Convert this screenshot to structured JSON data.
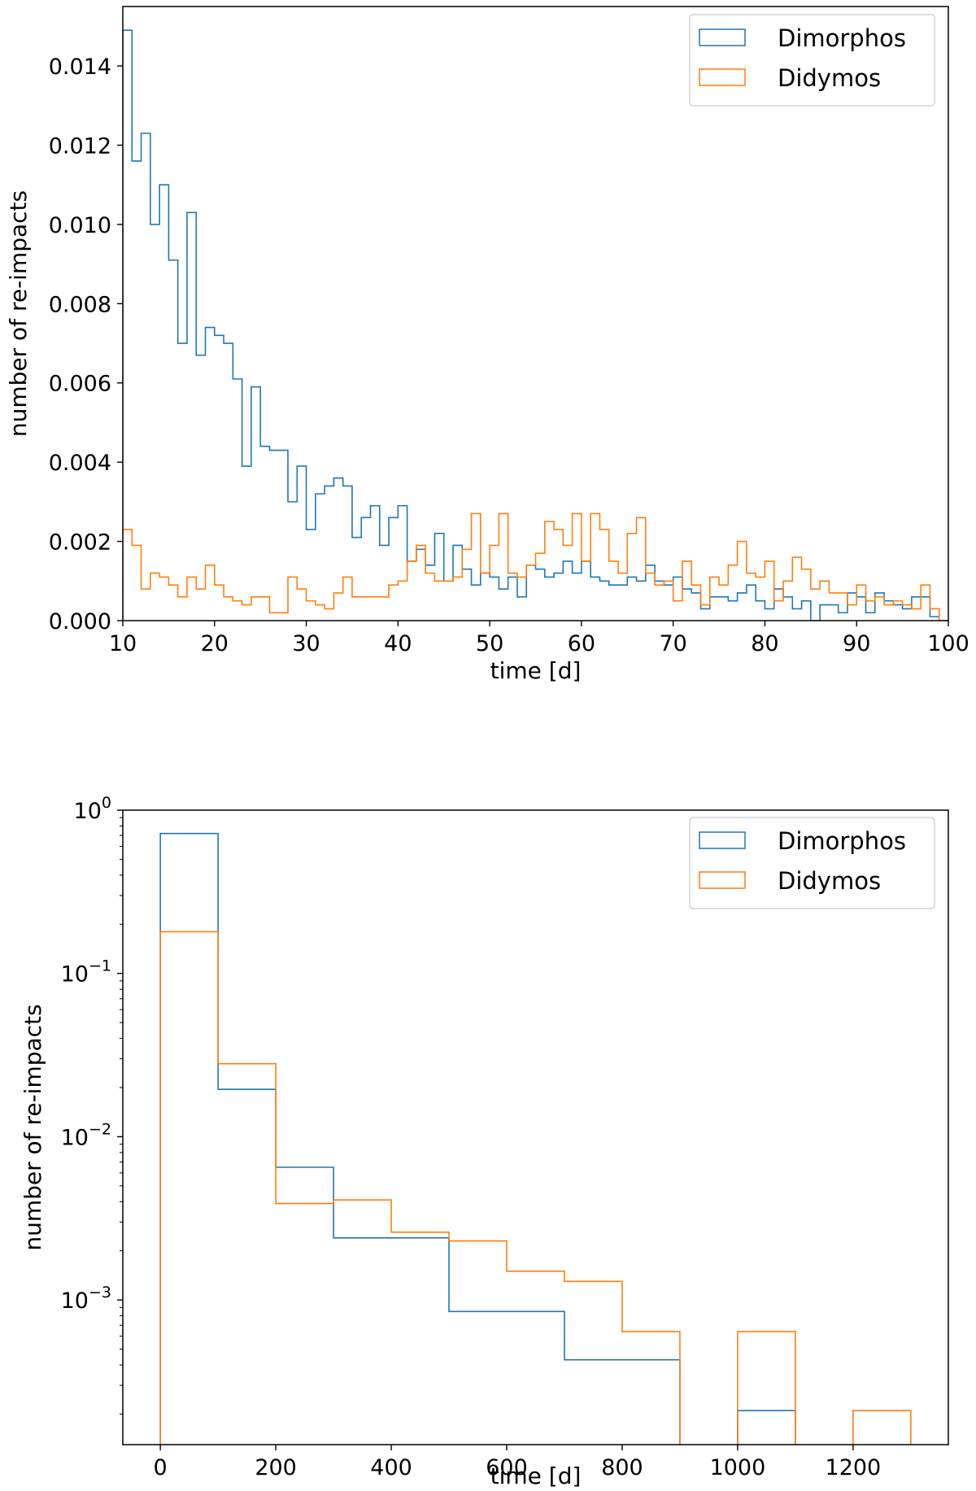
{
  "chart_data": [
    {
      "type": "step-histogram",
      "title": "",
      "xlabel": "time [d]",
      "ylabel": "number of re-impacts",
      "xlim": [
        10,
        100
      ],
      "ylim": [
        0,
        0.0155
      ],
      "yscale": "linear",
      "xticks": [
        10,
        20,
        30,
        40,
        50,
        60,
        70,
        80,
        90,
        100
      ],
      "xtick_labels": [
        "10",
        "20",
        "30",
        "40",
        "50",
        "60",
        "70",
        "80",
        "90",
        "100"
      ],
      "yticks": [
        0,
        0.002,
        0.004,
        0.006,
        0.008,
        0.01,
        0.012,
        0.014
      ],
      "ytick_labels": [
        "0.000",
        "0.002",
        "0.004",
        "0.006",
        "0.008",
        "0.010",
        "0.012",
        "0.014"
      ],
      "legend": {
        "position": "top-right",
        "entries": [
          "Dimorphos",
          "Didymos"
        ]
      },
      "bin_start": 10,
      "bin_width": 1,
      "series": [
        {
          "name": "Dimorphos",
          "color": "#1f77b4",
          "values": [
            0.0149,
            0.0116,
            0.0123,
            0.01,
            0.011,
            0.0091,
            0.007,
            0.0103,
            0.0067,
            0.0074,
            0.0072,
            0.007,
            0.0061,
            0.0039,
            0.0059,
            0.0044,
            0.0043,
            0.0043,
            0.003,
            0.0039,
            0.0023,
            0.0032,
            0.0034,
            0.0036,
            0.0034,
            0.0021,
            0.0026,
            0.0029,
            0.0019,
            0.0026,
            0.0029,
            0.0015,
            0.0018,
            0.0014,
            0.0022,
            0.001,
            0.0019,
            0.0013,
            0.0009,
            0.0012,
            0.0011,
            0.0008,
            0.0011,
            0.0006,
            0.0014,
            0.0013,
            0.0011,
            0.0012,
            0.0015,
            0.0012,
            0.0015,
            0.0011,
            0.001,
            0.0009,
            0.0009,
            0.0011,
            0.001,
            0.0014,
            0.001,
            0.0009,
            0.0011,
            0.0008,
            0.0007,
            0.0003,
            0.0006,
            0.0006,
            0.0005,
            0.0007,
            0.0009,
            0.0005,
            0.0003,
            0.0008,
            0.0006,
            0.0003,
            0.0005,
            0.0,
            0.0004,
            0.0004,
            0.0002,
            0.0007,
            0.0006,
            0.0002,
            0.0007,
            0.0005,
            0.0004,
            0.0003,
            0.0006,
            0.0006,
            0.0001,
            0.0
          ]
        },
        {
          "name": "Didymos",
          "color": "#ff7f0e",
          "values": [
            0.0023,
            0.0019,
            0.0008,
            0.0012,
            0.0011,
            0.0009,
            0.0006,
            0.0011,
            0.0008,
            0.0014,
            0.0009,
            0.0006,
            0.0005,
            0.0004,
            0.0006,
            0.0006,
            0.0002,
            0.0002,
            0.0011,
            0.0008,
            0.0005,
            0.0004,
            0.0003,
            0.0007,
            0.0011,
            0.0006,
            0.0006,
            0.0006,
            0.0006,
            0.0009,
            0.001,
            0.0015,
            0.0019,
            0.0012,
            0.001,
            0.001,
            0.0011,
            0.0018,
            0.0027,
            0.0012,
            0.0019,
            0.0027,
            0.0012,
            0.0011,
            0.0014,
            0.0017,
            0.0025,
            0.0023,
            0.0019,
            0.0027,
            0.0015,
            0.0027,
            0.0023,
            0.0015,
            0.0012,
            0.0022,
            0.0026,
            0.0012,
            0.0009,
            0.001,
            0.0005,
            0.0015,
            0.0009,
            0.0004,
            0.0011,
            0.0009,
            0.0014,
            0.002,
            0.0012,
            0.0011,
            0.0015,
            0.0005,
            0.001,
            0.0016,
            0.0013,
            0.0008,
            0.001,
            0.0007,
            0.0007,
            0.0004,
            0.0009,
            0.0005,
            0.0006,
            0.0004,
            0.0005,
            0.0004,
            0.0003,
            0.0009,
            0.0003,
            0.0
          ]
        }
      ]
    },
    {
      "type": "step-histogram",
      "title": "",
      "xlabel": "time [d]",
      "ylabel": "number of re-impacts",
      "xlim": [
        -65,
        1365
      ],
      "ylim": [
        0.00013,
        1.0
      ],
      "yscale": "log",
      "xticks": [
        0,
        200,
        400,
        600,
        800,
        1000,
        1200
      ],
      "xtick_labels": [
        "0",
        "200",
        "400",
        "600",
        "800",
        "1000",
        "1200"
      ],
      "yticks": [
        1,
        0.1,
        0.01,
        0.001
      ],
      "ytick_labels": [
        {
          "base": "10",
          "exp": "0"
        },
        {
          "base": "10",
          "exp": "−1"
        },
        {
          "base": "10",
          "exp": "−2"
        },
        {
          "base": "10",
          "exp": "−3"
        }
      ],
      "legend": {
        "position": "top-right",
        "entries": [
          "Dimorphos",
          "Didymos"
        ]
      },
      "bin_start": 0,
      "bin_width": 100,
      "series": [
        {
          "name": "Dimorphos",
          "color": "#1f77b4",
          "values": [
            0.72,
            0.0195,
            0.0065,
            0.0024,
            0.0024,
            0.00085,
            0.00085,
            0.00043,
            0.00043,
            0,
            0.00021,
            0,
            0
          ]
        },
        {
          "name": "Didymos",
          "color": "#ff7f0e",
          "values": [
            0.18,
            0.028,
            0.0039,
            0.0041,
            0.0026,
            0.0023,
            0.0015,
            0.0013,
            0.00064,
            0,
            0.00064,
            0,
            0.00021
          ]
        }
      ]
    }
  ]
}
